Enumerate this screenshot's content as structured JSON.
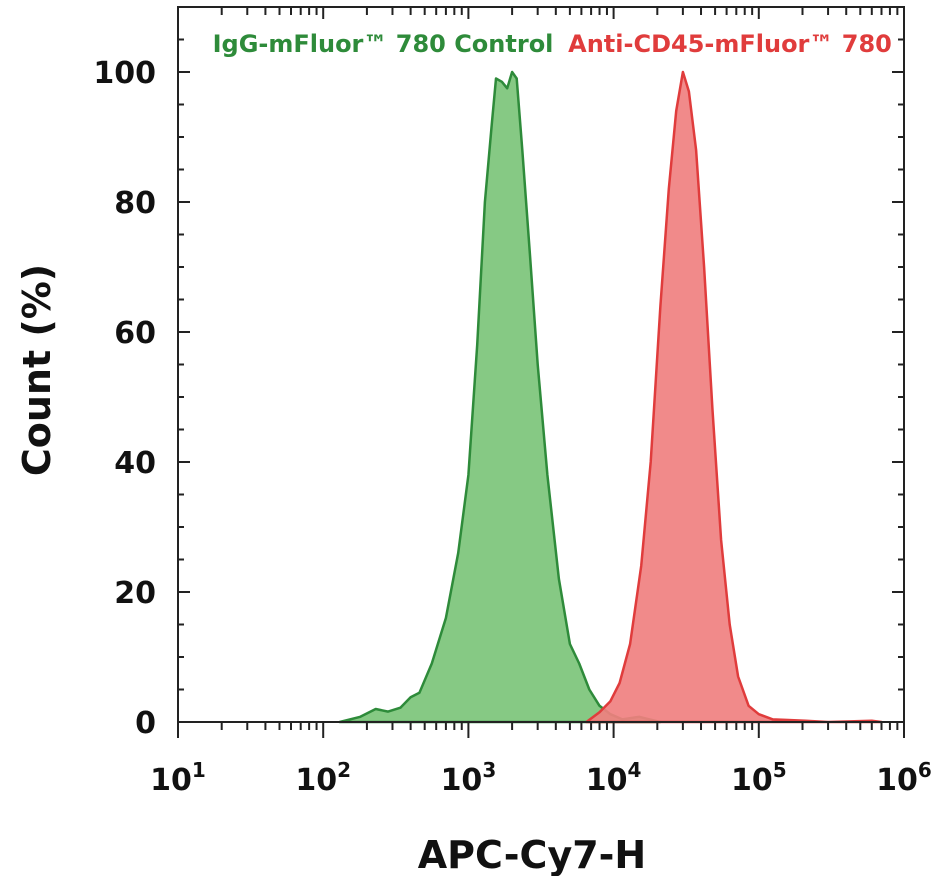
{
  "chart_data": {
    "type": "area",
    "xlabel": "APC-Cy7-H",
    "ylabel": "Count (%)",
    "x_scale": "log",
    "xlim": [
      10,
      1000000
    ],
    "ylim": [
      0,
      110
    ],
    "x_ticks": [
      {
        "value": 10,
        "base": "10",
        "exp": "1"
      },
      {
        "value": 100,
        "base": "10",
        "exp": "2"
      },
      {
        "value": 1000,
        "base": "10",
        "exp": "3"
      },
      {
        "value": 10000,
        "base": "10",
        "exp": "4"
      },
      {
        "value": 100000,
        "base": "10",
        "exp": "5"
      },
      {
        "value": 1000000,
        "base": "10",
        "exp": "6"
      }
    ],
    "y_ticks": [
      0,
      20,
      40,
      60,
      80,
      100
    ],
    "grid": false,
    "legend_placement": "top, as labels above each histogram",
    "series": [
      {
        "name": "IgG-mFluor™ 780 Control",
        "color": "#2e8b3a",
        "fill": "#7cc47a",
        "points": [
          [
            130,
            0
          ],
          [
            180,
            0.8
          ],
          [
            230,
            2
          ],
          [
            280,
            1.6
          ],
          [
            340,
            2.2
          ],
          [
            400,
            3.8
          ],
          [
            460,
            4.5
          ],
          [
            560,
            9
          ],
          [
            700,
            16
          ],
          [
            850,
            26
          ],
          [
            1000,
            38
          ],
          [
            1150,
            58
          ],
          [
            1300,
            80
          ],
          [
            1450,
            92
          ],
          [
            1550,
            99
          ],
          [
            1700,
            98.5
          ],
          [
            1850,
            97.5
          ],
          [
            2000,
            100
          ],
          [
            2150,
            99
          ],
          [
            2350,
            88
          ],
          [
            2650,
            72
          ],
          [
            3000,
            55
          ],
          [
            3500,
            38
          ],
          [
            4200,
            22
          ],
          [
            5000,
            12
          ],
          [
            5800,
            9
          ],
          [
            6800,
            5
          ],
          [
            8000,
            2.5
          ],
          [
            9500,
            1.2
          ],
          [
            11500,
            0.4
          ],
          [
            15000,
            0.8
          ],
          [
            17000,
            0.5
          ],
          [
            21000,
            0
          ]
        ]
      },
      {
        "name": "Anti-CD45-mFluor™ 780",
        "color": "#e03c3c",
        "fill": "#f08080",
        "points": [
          [
            6500,
            0
          ],
          [
            8000,
            1.5
          ],
          [
            9500,
            3.2
          ],
          [
            11000,
            6
          ],
          [
            13000,
            12
          ],
          [
            15500,
            24
          ],
          [
            18000,
            40
          ],
          [
            21000,
            64
          ],
          [
            24000,
            82
          ],
          [
            27000,
            94
          ],
          [
            30000,
            100
          ],
          [
            33000,
            97
          ],
          [
            37000,
            88
          ],
          [
            42000,
            70
          ],
          [
            48000,
            48
          ],
          [
            55000,
            28
          ],
          [
            63000,
            15
          ],
          [
            72000,
            7
          ],
          [
            85000,
            2.5
          ],
          [
            100000,
            1.2
          ],
          [
            125000,
            0.4
          ],
          [
            160000,
            0.3
          ],
          [
            210000,
            0.2
          ],
          [
            300000,
            0
          ],
          [
            600000,
            0.2
          ],
          [
            700000,
            0
          ]
        ]
      }
    ]
  }
}
